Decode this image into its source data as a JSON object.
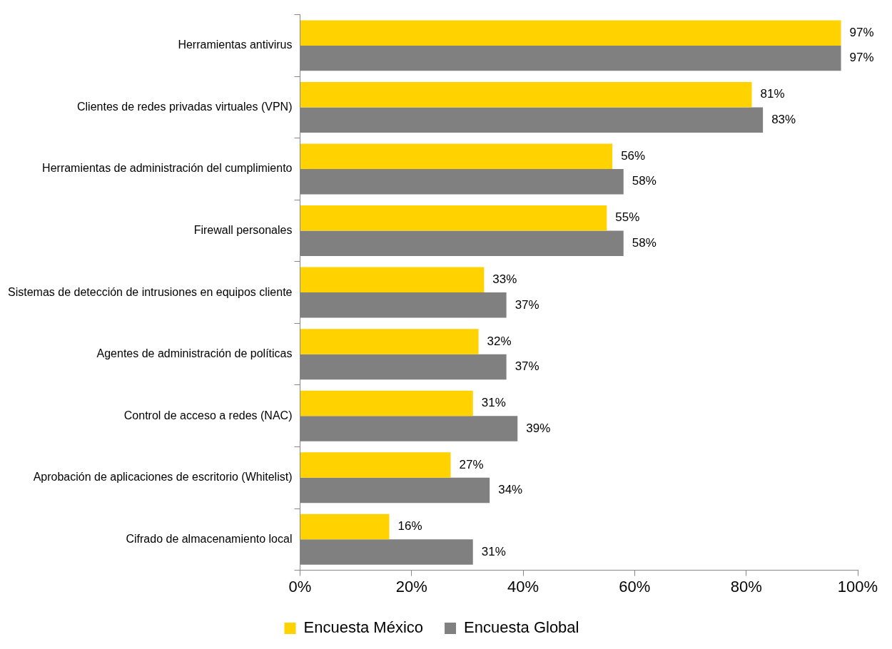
{
  "chart_data": {
    "type": "bar",
    "orientation": "horizontal",
    "categories": [
      "Herramientas antivirus",
      "Clientes de redes privadas virtuales (VPN)",
      "Herramientas de administración del cumplimiento",
      "Firewall personales",
      "Sistemas de detección de intrusiones en equipos cliente",
      "Agentes de administración de políticas",
      "Control de acceso a redes (NAC)",
      "Aprobación de aplicaciones de escritorio (Whitelist)",
      "Cifrado de almacenamiento local"
    ],
    "series": [
      {
        "name": "Encuesta México",
        "color": "#ffd200",
        "values": [
          97,
          81,
          56,
          55,
          33,
          32,
          31,
          27,
          16
        ],
        "value_labels": [
          "97%",
          "81%",
          "56%",
          "55%",
          "33%",
          "32%",
          "31%",
          "27%",
          "16%"
        ]
      },
      {
        "name": "Encuesta Global",
        "color": "#808080",
        "values": [
          97,
          83,
          58,
          58,
          37,
          37,
          39,
          34,
          31
        ],
        "value_labels": [
          "97%",
          "83%",
          "58%",
          "58%",
          "37%",
          "37%",
          "39%",
          "34%",
          "31%"
        ]
      }
    ],
    "xlim": [
      0,
      100
    ],
    "xticks": [
      {
        "value": 0,
        "label": "0%"
      },
      {
        "value": 20,
        "label": "20%"
      },
      {
        "value": 40,
        "label": "40%"
      },
      {
        "value": 60,
        "label": "60%"
      },
      {
        "value": 80,
        "label": "80%"
      },
      {
        "value": 100,
        "label": "100%"
      }
    ],
    "grid": false,
    "legend": "bottom"
  }
}
